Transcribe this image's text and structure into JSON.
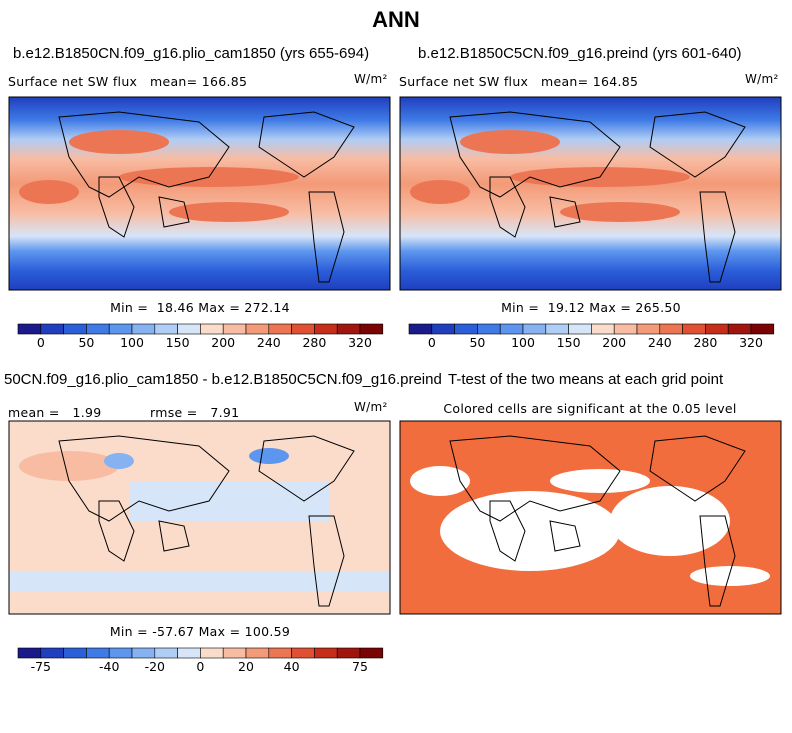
{
  "title": "ANN",
  "panels": [
    {
      "title": "b.e12.B1850CN.f09_g16.plio_cam1850 (yrs 655-694)",
      "field": "Surface net SW flux",
      "mean": "mean= 166.85",
      "units": "W/m²",
      "stats": "Min =  18.46 Max = 272.14",
      "colorbar": 0
    },
    {
      "title": "b.e12.B1850C5CN.f09_g16.preind (yrs 601-640)",
      "field": "Surface net SW flux",
      "mean": "mean= 164.85",
      "units": "W/m²",
      "stats": "Min =  19.12 Max = 265.50",
      "colorbar": 0
    },
    {
      "title": "50CN.f09_g16.plio_cam1850 - b.e12.B1850C5CN.f09_g16.preind",
      "field": "mean =   1.99",
      "mean": "rmse =   7.91",
      "units": "W/m²",
      "stats": "Min = -57.67 Max = 100.59",
      "colorbar": 1
    },
    {
      "title": "T-test of the two means at each grid point",
      "field": "Colored cells are significant at the 0.05 level",
      "significant_color": "#f26d3d"
    }
  ],
  "colorbars": [
    {
      "labels": [
        "0",
        "50",
        "100",
        "150",
        "200",
        "240",
        "280",
        "320"
      ]
    },
    {
      "labels": [
        "-75",
        "-40",
        "-20",
        "0",
        "20",
        "40",
        "75"
      ]
    }
  ],
  "colors": [
    "#1a1a8c",
    "#1f3fbf",
    "#2b5ed9",
    "#3f7be6",
    "#5d96ee",
    "#86b2f2",
    "#b0cdf5",
    "#d7e5f8",
    "#fbdccb",
    "#f8bca3",
    "#f39a78",
    "#ec7653",
    "#df5132",
    "#c62e1b",
    "#a0160e",
    "#7a0403"
  ]
}
